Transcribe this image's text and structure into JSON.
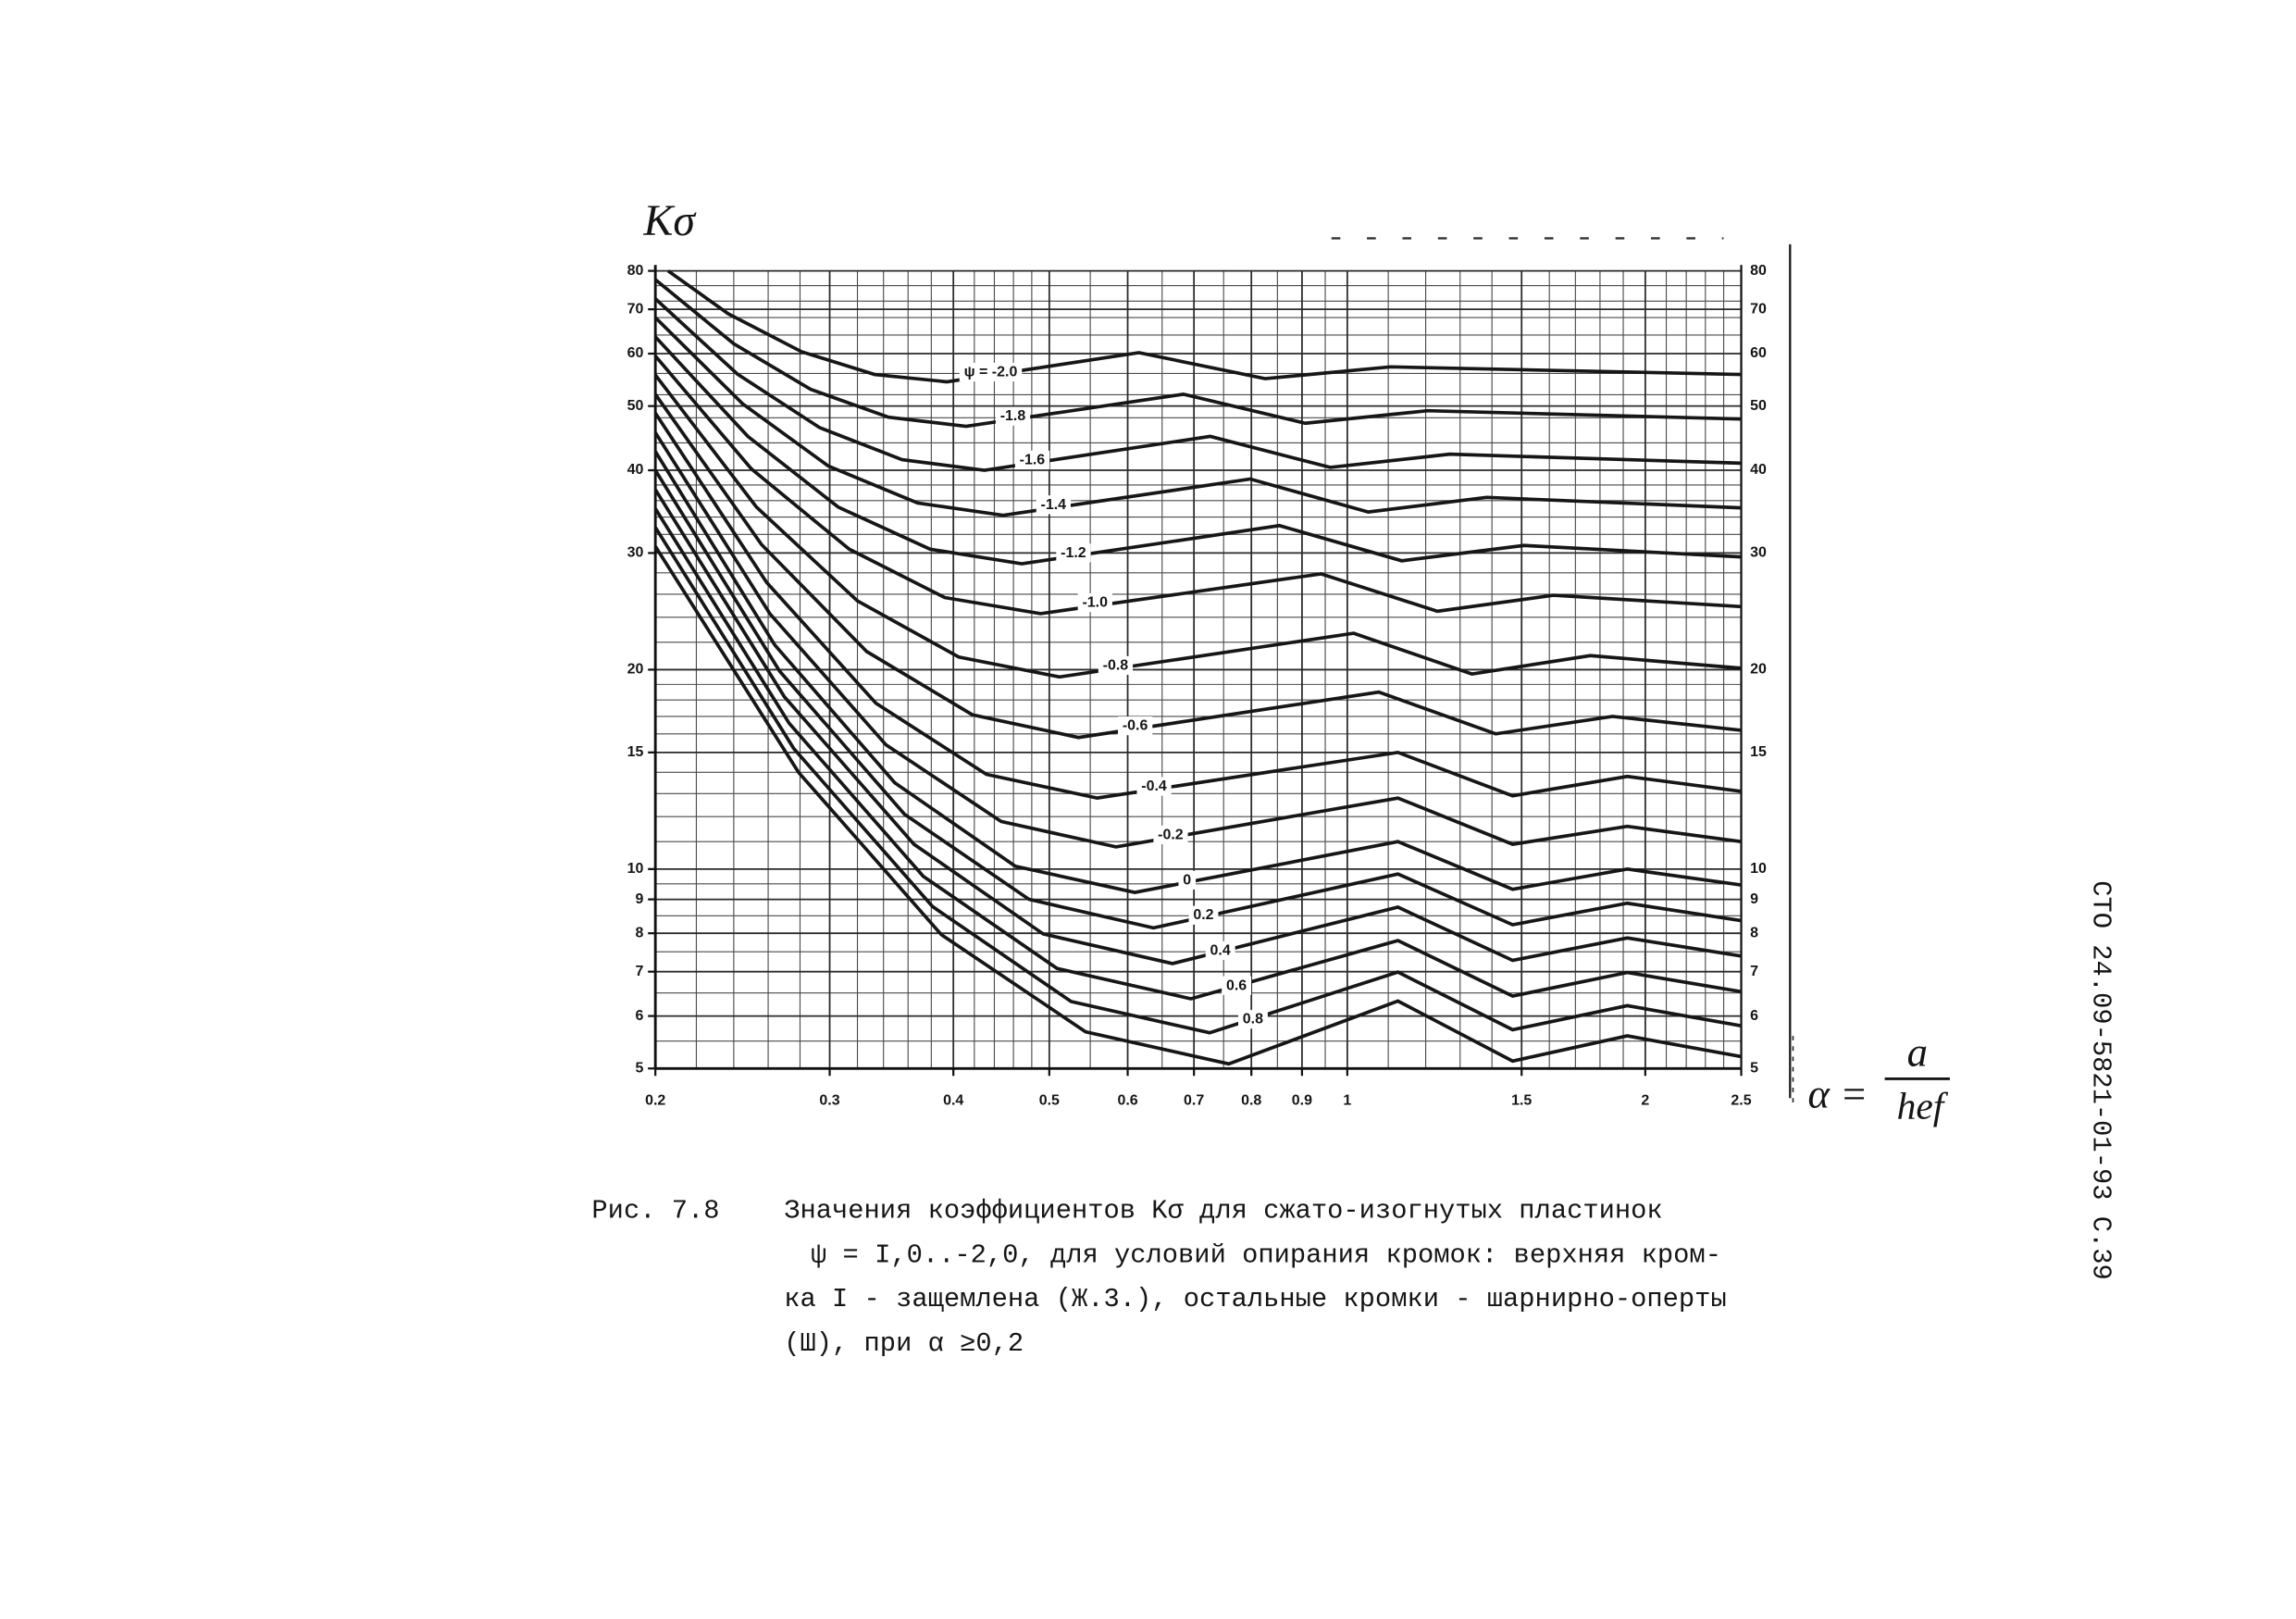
{
  "chart_data": {
    "type": "line",
    "y_label": "Kσ",
    "x_label": {
      "symbol": "α =",
      "numerator": "a",
      "denominator": "hef"
    },
    "xscale": "log",
    "yscale": "log",
    "xlim": [
      0.2,
      2.5
    ],
    "ylim": [
      5,
      80
    ],
    "xticks": [
      0.2,
      0.3,
      0.4,
      0.5,
      0.6,
      0.7,
      0.8,
      0.9,
      1,
      1.5,
      2,
      2.5
    ],
    "yticks": [
      5,
      6,
      7,
      8,
      9,
      10,
      15,
      20,
      30,
      40,
      50,
      60,
      70,
      80
    ],
    "grid": true,
    "minor_xgrid": [
      0.22,
      0.24,
      0.26,
      0.28,
      0.32,
      0.34,
      0.36,
      0.38,
      0.42,
      0.44,
      0.46,
      0.48,
      0.55,
      0.65,
      0.75,
      0.85,
      0.95,
      1.1,
      1.2,
      1.3,
      1.4,
      1.6,
      1.7,
      1.8,
      1.9,
      2.1,
      2.2,
      2.3,
      2.4
    ],
    "minor_ygrid": [
      5.5,
      6.5,
      7.5,
      8.5,
      9.5,
      11,
      12,
      13,
      14,
      16,
      17,
      18,
      19,
      22,
      24,
      26,
      28,
      32,
      34,
      36,
      38,
      44,
      48,
      52,
      56,
      64,
      68,
      72,
      76
    ],
    "color": "#161616",
    "series": [
      {
        "name": "ψ = -2.0",
        "x": [
          0.206,
          0.237,
          0.281,
          0.333,
          0.394,
          0.616,
          0.826,
          1.106,
          2.5
        ],
        "values": [
          80,
          68.9,
          60.4,
          55.8,
          54.4,
          60.2,
          55.0,
          57.3,
          55.8
        ]
      },
      {
        "name": "-1.8",
        "x": [
          0.2,
          0.24,
          0.287,
          0.344,
          0.412,
          0.683,
          0.907,
          1.205,
          2.5
        ],
        "values": [
          77.6,
          62.1,
          53.0,
          48.1,
          46.6,
          52.1,
          47.1,
          49.2,
          47.8
        ]
      },
      {
        "name": "-1.6",
        "x": [
          0.2,
          0.242,
          0.293,
          0.355,
          0.43,
          0.727,
          0.961,
          1.269,
          2.5
        ],
        "values": [
          72.6,
          55.9,
          46.4,
          41.5,
          40.0,
          45.0,
          40.4,
          42.3,
          41.0
        ]
      },
      {
        "name": "-1.4",
        "x": [
          0.2,
          0.245,
          0.299,
          0.368,
          0.449,
          0.798,
          1.05,
          1.383,
          2.5
        ],
        "values": [
          68.0,
          50.4,
          40.6,
          35.7,
          34.2,
          38.8,
          34.6,
          36.4,
          35.1
        ]
      },
      {
        "name": "-1.2",
        "x": [
          0.2,
          0.248,
          0.306,
          0.379,
          0.469,
          0.854,
          1.135,
          1.508,
          2.5
        ],
        "values": [
          63.6,
          45.0,
          35.2,
          30.4,
          28.9,
          33.0,
          29.2,
          30.8,
          29.6
        ]
      },
      {
        "name": "-1.0",
        "x": [
          0.2,
          0.25,
          0.314,
          0.392,
          0.49,
          0.941,
          1.233,
          1.615,
          2.5
        ],
        "values": [
          59.5,
          40.2,
          30.4,
          25.7,
          24.3,
          27.9,
          24.5,
          25.9,
          24.9
        ]
      },
      {
        "name": "-0.8",
        "x": [
          0.2,
          0.253,
          0.32,
          0.405,
          0.512,
          1.015,
          1.336,
          1.76,
          2.5
        ],
        "values": [
          55.7,
          35.2,
          25.4,
          20.9,
          19.5,
          22.7,
          19.7,
          21.0,
          20.1
        ]
      },
      {
        "name": "-0.6",
        "x": [
          0.2,
          0.256,
          0.327,
          0.418,
          0.535,
          1.076,
          1.412,
          1.853,
          2.5
        ],
        "values": [
          52.1,
          30.9,
          21.3,
          17.1,
          15.8,
          18.5,
          16.0,
          17.0,
          16.2
        ]
      },
      {
        "name": "-0.4",
        "x": [
          0.2,
          0.259,
          0.334,
          0.432,
          0.559,
          1.125,
          1.469,
          1.918,
          2.5
        ],
        "values": [
          48.8,
          27.1,
          17.8,
          13.9,
          12.8,
          15.0,
          12.9,
          13.8,
          13.1
        ]
      },
      {
        "name": "-0.2",
        "x": [
          0.2,
          0.261,
          0.342,
          0.447,
          0.584,
          1.125,
          1.469,
          1.918,
          2.5
        ],
        "values": [
          45.6,
          24.3,
          15.4,
          11.8,
          10.8,
          12.8,
          10.9,
          11.6,
          11.0
        ]
      },
      {
        "name": "0",
        "x": [
          0.2,
          0.264,
          0.349,
          0.462,
          0.61,
          1.125,
          1.469,
          1.918,
          2.5
        ],
        "values": [
          42.7,
          21.8,
          13.5,
          10.1,
          9.22,
          11.0,
          9.32,
          10.0,
          9.46
        ]
      },
      {
        "name": "0.2",
        "x": [
          0.2,
          0.267,
          0.357,
          0.477,
          0.637,
          1.125,
          1.469,
          1.918,
          2.5
        ],
        "values": [
          40.0,
          19.9,
          12.1,
          9.0,
          8.15,
          9.83,
          8.24,
          8.88,
          8.36
        ]
      },
      {
        "name": "0.4",
        "x": [
          0.2,
          0.27,
          0.365,
          0.493,
          0.666,
          1.125,
          1.469,
          1.918,
          2.5
        ],
        "values": [
          37.4,
          18.2,
          10.9,
          7.98,
          7.2,
          8.76,
          7.28,
          7.87,
          7.39
        ]
      },
      {
        "name": "0.6",
        "x": [
          0.2,
          0.273,
          0.373,
          0.509,
          0.695,
          1.125,
          1.469,
          1.918,
          2.5
        ],
        "values": [
          35.0,
          16.6,
          9.75,
          7.08,
          6.37,
          7.8,
          6.43,
          6.98,
          6.53
        ]
      },
      {
        "name": "0.8",
        "x": [
          0.2,
          0.276,
          0.381,
          0.526,
          0.726,
          1.125,
          1.469,
          1.918,
          2.5
        ],
        "values": [
          32.8,
          15.2,
          8.78,
          6.31,
          5.66,
          6.99,
          5.72,
          6.22,
          5.8
        ]
      },
      {
        "x": [
          0.2,
          0.279,
          0.389,
          0.544,
          0.759,
          1.125,
          1.469,
          1.918,
          2.5
        ],
        "values": [
          30.7,
          14.0,
          7.96,
          5.68,
          5.08,
          6.32,
          5.13,
          5.6,
          5.21
        ]
      }
    ]
  },
  "caption": {
    "figure": "Рис. 7.8",
    "lines": [
      "Значения коэффициентов Kσ для сжато-изогнутых пластинок",
      "ψ = I,0..-2,0, для условий опирания кромок: верхняя кром-",
      "ка I - защемлена (Ж.3.), остальные кромки - шарнирно-оперты",
      "(Ш), при α ≥0,2"
    ]
  },
  "side_text": "СТО 24.09-5821-01-93 С.39"
}
